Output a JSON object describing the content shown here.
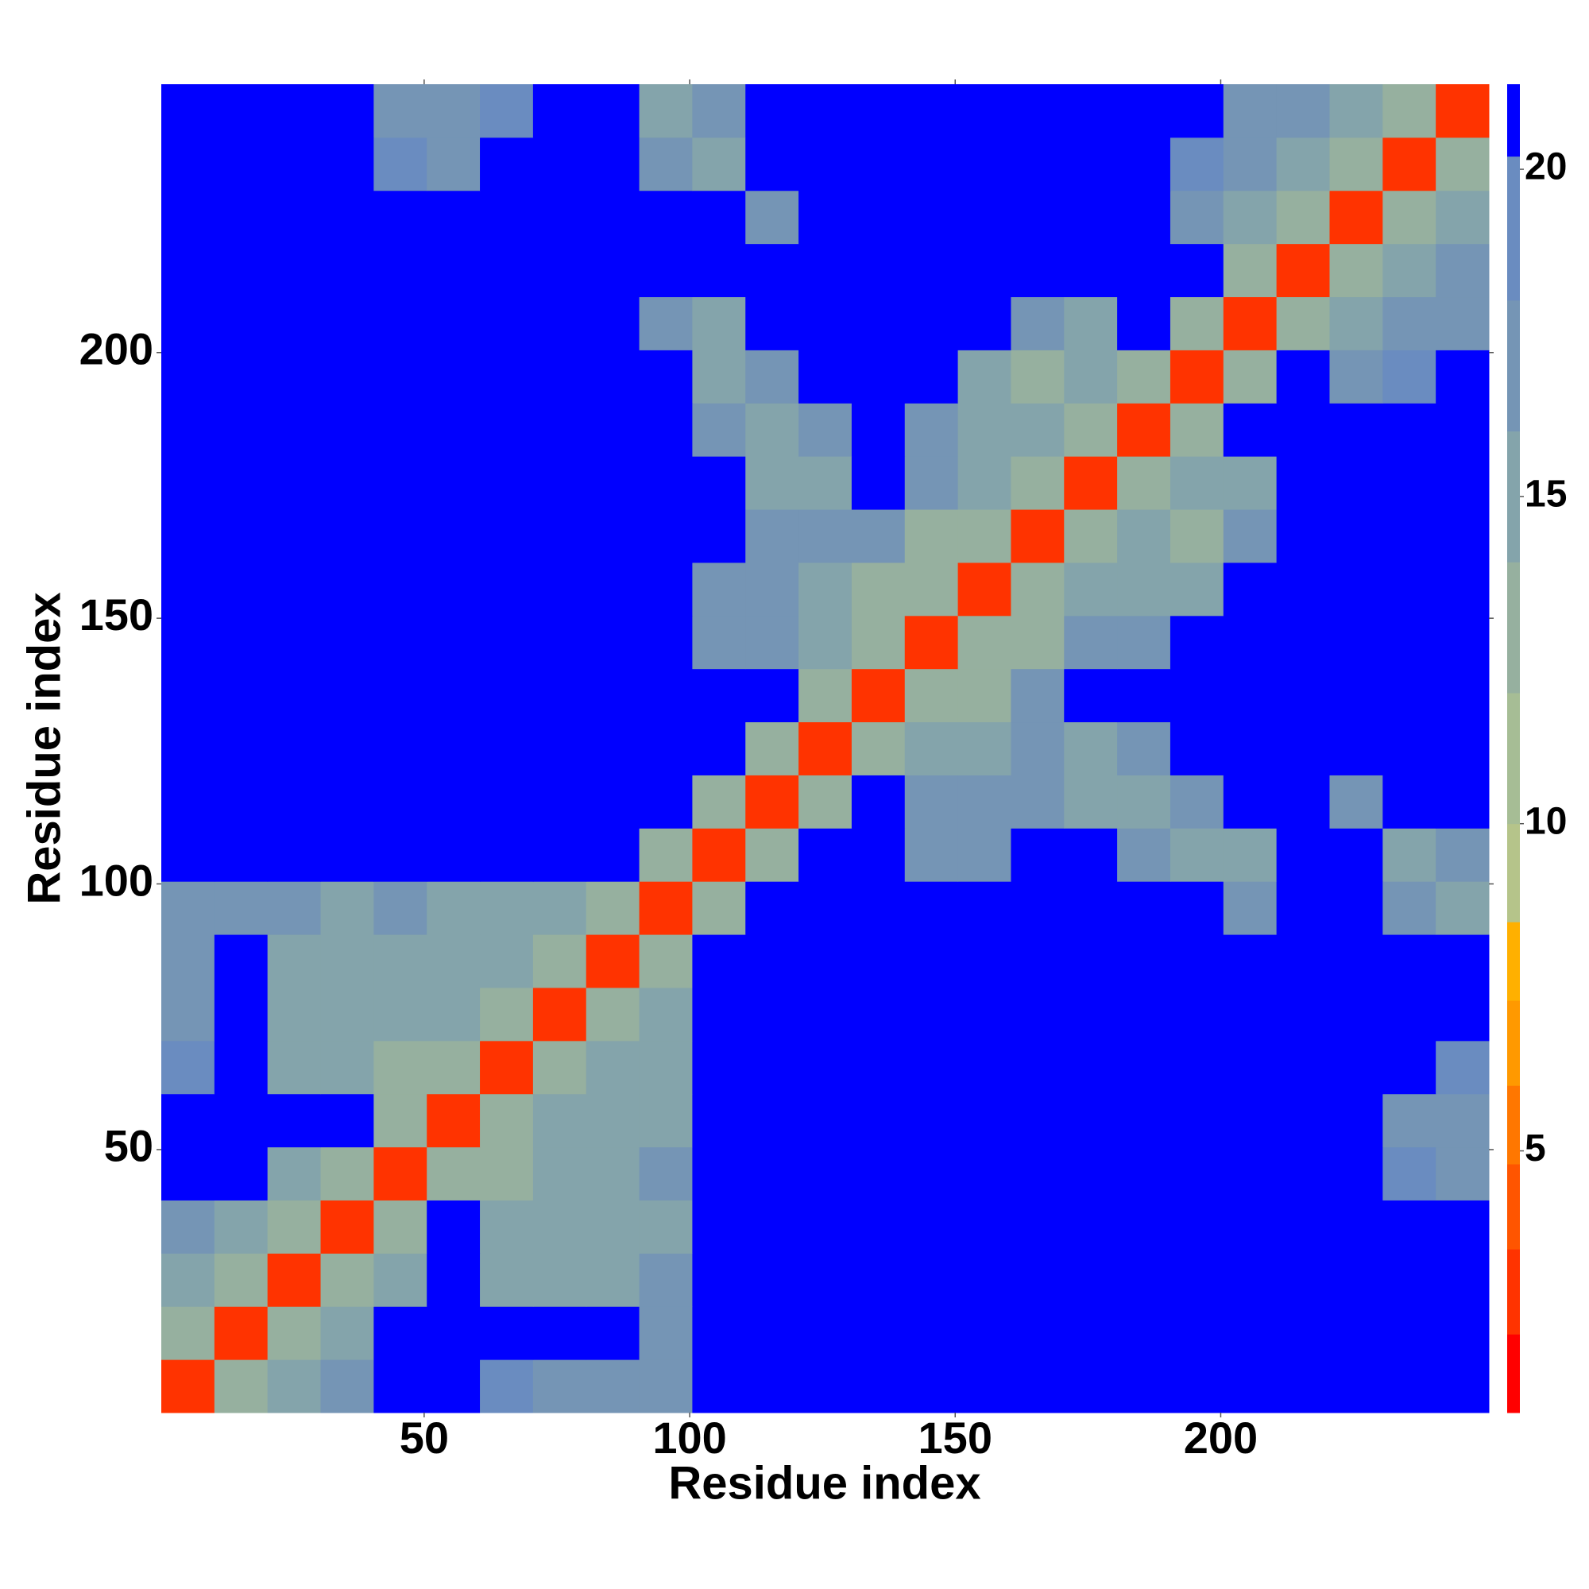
{
  "chart_data": {
    "type": "heatmap",
    "xlabel": "Residue index",
    "ylabel": "Residue index",
    "xbins": [
      0.5,
      10.5,
      20.5,
      30.5,
      40.5,
      50.5,
      60.5,
      70.5,
      80.5,
      90.5,
      100.5,
      110.5,
      120.5,
      130.5,
      140.5,
      150.5,
      160.5,
      170.5,
      180.5,
      190.5,
      200.5,
      210.5,
      220.5,
      230.5,
      240.5,
      250.5
    ],
    "ybins": [
      0.5,
      10.5,
      20.5,
      30.5,
      40.5,
      50.5,
      60.5,
      70.5,
      80.5,
      90.5,
      100.5,
      110.5,
      120.5,
      130.5,
      140.5,
      150.5,
      160.5,
      170.5,
      180.5,
      190.5,
      200.5,
      210.5,
      220.5,
      230.5,
      240.5,
      250.5
    ],
    "xlim": [
      0.5,
      250.5
    ],
    "ylim": [
      0.5,
      250.5
    ],
    "xticks": [
      50,
      100,
      150,
      200
    ],
    "yticks": [
      50,
      100,
      150,
      200
    ],
    "zlim": [
      1,
      21.3
    ],
    "zticks": [
      5,
      10,
      15,
      20
    ],
    "colorscale": [
      {
        "value": 1,
        "color": "#ff0000"
      },
      {
        "value": 2.2,
        "color": "#ff3300"
      },
      {
        "value": 3.5,
        "color": "#ff5500"
      },
      {
        "value": 4.8,
        "color": "#ff7700"
      },
      {
        "value": 6,
        "color": "#ff9900"
      },
      {
        "value": 7.3,
        "color": "#ffb000"
      },
      {
        "value": 8.5,
        "color": "#b5c48a"
      },
      {
        "value": 10,
        "color": "#a6bd95"
      },
      {
        "value": 12,
        "color": "#96b09f"
      },
      {
        "value": 14,
        "color": "#84a4ab"
      },
      {
        "value": 16,
        "color": "#7595b5"
      },
      {
        "value": 18,
        "color": "#6a8cc0"
      },
      {
        "value": 20.2,
        "color": "#0000ff"
      }
    ],
    "z": [
      [
        3,
        12,
        14,
        16,
        21,
        21,
        18,
        17,
        17,
        16,
        21,
        21,
        21,
        21,
        21,
        21,
        21,
        21,
        21,
        21,
        21,
        21,
        21,
        21,
        21
      ],
      [
        12,
        3,
        12,
        15,
        21,
        21,
        21,
        21,
        21,
        17,
        21,
        21,
        21,
        21,
        21,
        21,
        21,
        21,
        21,
        21,
        21,
        21,
        21,
        21,
        21
      ],
      [
        14,
        12,
        3,
        12,
        15,
        21,
        15,
        14,
        15,
        16,
        21,
        21,
        21,
        21,
        21,
        21,
        21,
        21,
        21,
        21,
        21,
        21,
        21,
        21,
        21
      ],
      [
        16,
        15,
        12,
        3,
        12,
        21,
        14,
        14,
        15,
        15,
        21,
        21,
        21,
        21,
        21,
        21,
        21,
        21,
        21,
        21,
        21,
        21,
        21,
        21,
        21
      ],
      [
        21,
        21,
        15,
        12,
        3,
        12,
        13,
        14,
        15,
        16,
        21,
        21,
        21,
        21,
        21,
        21,
        21,
        21,
        21,
        21,
        21,
        21,
        21,
        18,
        16
      ],
      [
        21,
        21,
        21,
        21,
        12,
        3,
        12,
        14,
        14,
        15,
        21,
        21,
        21,
        21,
        21,
        21,
        21,
        21,
        21,
        21,
        21,
        21,
        21,
        17,
        16
      ],
      [
        18,
        21,
        15,
        14,
        13,
        12,
        3,
        12,
        14,
        15,
        21,
        21,
        21,
        21,
        21,
        21,
        21,
        21,
        21,
        21,
        21,
        21,
        21,
        21,
        18
      ],
      [
        17,
        21,
        14,
        14,
        14,
        14,
        12,
        3,
        12,
        14,
        21,
        21,
        21,
        21,
        21,
        21,
        21,
        21,
        21,
        21,
        21,
        21,
        21,
        21,
        21
      ],
      [
        17,
        21,
        15,
        15,
        15,
        14,
        14,
        12,
        3,
        12,
        21,
        21,
        21,
        21,
        21,
        21,
        21,
        21,
        21,
        21,
        21,
        21,
        21,
        21,
        21
      ],
      [
        16,
        17,
        16,
        15,
        16,
        15,
        15,
        14,
        12,
        3,
        12,
        21,
        21,
        21,
        21,
        21,
        21,
        21,
        21,
        21,
        16,
        21,
        21,
        16,
        15
      ],
      [
        21,
        21,
        21,
        21,
        21,
        21,
        21,
        21,
        21,
        12,
        3,
        12,
        21,
        21,
        17,
        17,
        21,
        21,
        16,
        15,
        14,
        21,
        21,
        15,
        16
      ],
      [
        21,
        21,
        21,
        21,
        21,
        21,
        21,
        21,
        21,
        21,
        12,
        3,
        12,
        21,
        16,
        16,
        16,
        15,
        15,
        16,
        21,
        21,
        17,
        21,
        21
      ],
      [
        21,
        21,
        21,
        21,
        21,
        21,
        21,
        21,
        21,
        21,
        21,
        12,
        3,
        12,
        14,
        15,
        16,
        15,
        17,
        21,
        21,
        21,
        21,
        21,
        21
      ],
      [
        21,
        21,
        21,
        21,
        21,
        21,
        21,
        21,
        21,
        21,
        21,
        21,
        12,
        3,
        12,
        13,
        16,
        21,
        21,
        21,
        21,
        21,
        21,
        21,
        21
      ],
      [
        21,
        21,
        21,
        21,
        21,
        21,
        21,
        21,
        21,
        21,
        17,
        16,
        14,
        12,
        3,
        12,
        13,
        16,
        17,
        21,
        21,
        21,
        21,
        21,
        21
      ],
      [
        21,
        21,
        21,
        21,
        21,
        21,
        21,
        21,
        21,
        21,
        17,
        16,
        15,
        13,
        12,
        3,
        12,
        14,
        15,
        15,
        21,
        21,
        21,
        21,
        21
      ],
      [
        21,
        21,
        21,
        21,
        21,
        21,
        21,
        21,
        21,
        21,
        21,
        16,
        16,
        16,
        13,
        12,
        3,
        12,
        15,
        13,
        16,
        21,
        21,
        21,
        21
      ],
      [
        21,
        21,
        21,
        21,
        21,
        21,
        21,
        21,
        21,
        21,
        21,
        15,
        15,
        21,
        16,
        14,
        12,
        3,
        12,
        14,
        15,
        21,
        21,
        21,
        21
      ],
      [
        21,
        21,
        21,
        21,
        21,
        21,
        21,
        21,
        21,
        21,
        16,
        15,
        17,
        21,
        17,
        15,
        15,
        12,
        3,
        12,
        21,
        21,
        21,
        21,
        21
      ],
      [
        21,
        21,
        21,
        21,
        21,
        21,
        21,
        21,
        21,
        21,
        15,
        16,
        21,
        21,
        21,
        15,
        13,
        14,
        12,
        3,
        12,
        21,
        17,
        18,
        21
      ],
      [
        21,
        21,
        21,
        21,
        21,
        21,
        21,
        21,
        21,
        16,
        14,
        21,
        21,
        21,
        21,
        21,
        16,
        15,
        21,
        12,
        3,
        12,
        14,
        16,
        17
      ],
      [
        21,
        21,
        21,
        21,
        21,
        21,
        21,
        21,
        21,
        21,
        21,
        21,
        21,
        21,
        21,
        21,
        21,
        21,
        21,
        21,
        12,
        3,
        12,
        14,
        16
      ],
      [
        21,
        21,
        21,
        21,
        21,
        21,
        21,
        21,
        21,
        21,
        21,
        17,
        21,
        21,
        21,
        21,
        21,
        21,
        21,
        17,
        14,
        12,
        3,
        12,
        14
      ],
      [
        21,
        21,
        21,
        21,
        18,
        17,
        21,
        21,
        21,
        16,
        15,
        21,
        21,
        21,
        21,
        21,
        21,
        21,
        21,
        18,
        16,
        14,
        12,
        3,
        12
      ],
      [
        21,
        21,
        21,
        21,
        16,
        16,
        18,
        21,
        21,
        15,
        16,
        21,
        21,
        21,
        21,
        21,
        21,
        21,
        21,
        21,
        17,
        16,
        14,
        12,
        3
      ]
    ]
  }
}
